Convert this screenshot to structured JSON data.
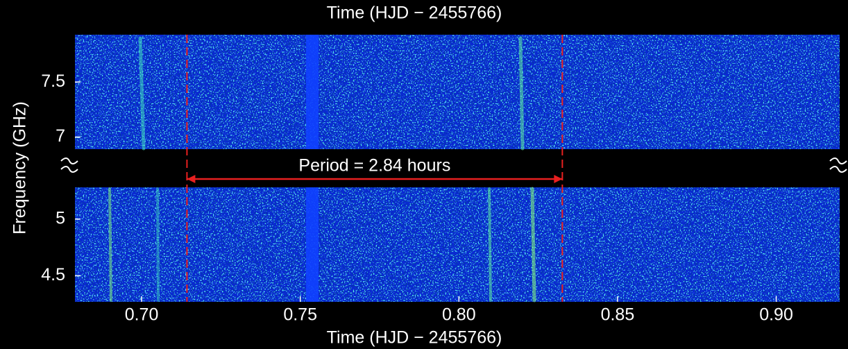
{
  "chart_data": {
    "type": "dynamic-spectrum",
    "xlabel": "Time (HJD − 2455766)",
    "ylabel": "Frequency (GHz)",
    "xlim": [
      0.679,
      0.92
    ],
    "xticks": [
      {
        "value": 0.7,
        "label": "0.70"
      },
      {
        "value": 0.75,
        "label": "0.75"
      },
      {
        "value": 0.8,
        "label": "0.80"
      },
      {
        "value": 0.85,
        "label": "0.85"
      },
      {
        "value": 0.9,
        "label": "0.90"
      }
    ],
    "panels": [
      {
        "ylim": [
          6.89,
          7.93
        ],
        "yticks": [
          7,
          7.5
        ]
      },
      {
        "ylim": [
          4.27,
          5.28
        ],
        "yticks": [
          4.5,
          5
        ]
      }
    ],
    "markers": [
      0.7143,
      0.8326
    ],
    "annotation": "Period = 2.84 hours",
    "marker_color": "#e82020"
  }
}
